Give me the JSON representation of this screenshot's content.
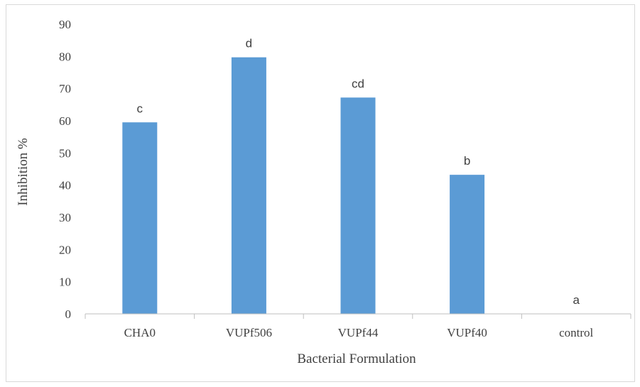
{
  "chart_data": {
    "type": "bar",
    "categories": [
      "CHA0",
      "VUPf506",
      "VUPf44",
      "VUPf40",
      "control"
    ],
    "values": [
      59.5,
      79.7,
      67.2,
      43.2,
      0
    ],
    "data_labels": [
      "c",
      "d",
      "cd",
      "b",
      "a"
    ],
    "xlabel": "Bacterial Formulation",
    "ylabel": "Inhibition %",
    "ylim": [
      0,
      90
    ],
    "yticks": [
      0,
      10,
      20,
      30,
      40,
      50,
      60,
      70,
      80,
      90
    ],
    "grid": false,
    "legend": "none",
    "bar_color": "#5b9bd5",
    "axis_color": "#bfbfbf",
    "text_color": "#404040"
  }
}
